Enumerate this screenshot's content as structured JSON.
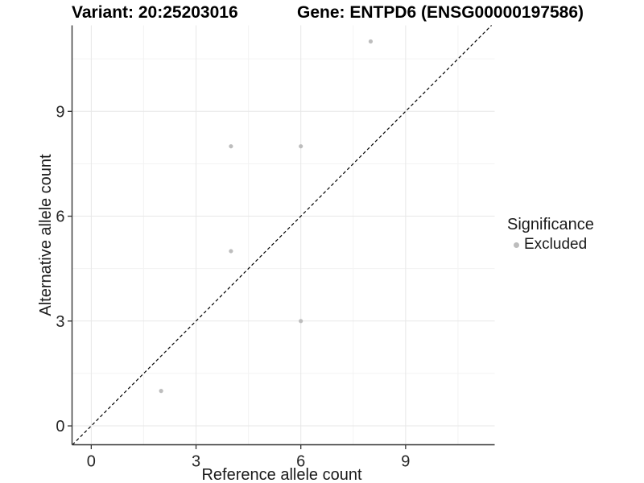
{
  "chart_data": {
    "type": "scatter",
    "title_left": "Variant: 20:25203016",
    "title_right": "Gene: ENTPD6 (ENSG00000197586)",
    "xlabel": "Reference allele count",
    "ylabel": "Alternative allele count",
    "xlim": [
      -0.55,
      11.55
    ],
    "ylim": [
      -0.54,
      11.46
    ],
    "major_ticks": [
      0,
      3,
      6,
      9
    ],
    "minor_gridlines": [
      1.5,
      4.5,
      7.5,
      10.5
    ],
    "grid": {
      "show": true,
      "major_color": "#e7e7e7",
      "minor_color": "#f3f3f3"
    },
    "axis_color": "#333333",
    "tick_label_color": "#262626",
    "identity_line": {
      "type": "dashed",
      "color": "#000000",
      "from": -0.54,
      "to": 11.46
    },
    "series": [
      {
        "name": "Excluded",
        "color": "#bdbdbd",
        "point_radius": 2.6,
        "points": [
          {
            "x": 2,
            "y": 1
          },
          {
            "x": 4,
            "y": 5
          },
          {
            "x": 4,
            "y": 8
          },
          {
            "x": 6,
            "y": 3
          },
          {
            "x": 6,
            "y": 8
          },
          {
            "x": 8,
            "y": 11
          }
        ]
      }
    ],
    "legend": {
      "title": "Significance",
      "position": "right",
      "items": [
        {
          "label": "Excluded",
          "color": "#bdbdbd"
        }
      ]
    }
  }
}
